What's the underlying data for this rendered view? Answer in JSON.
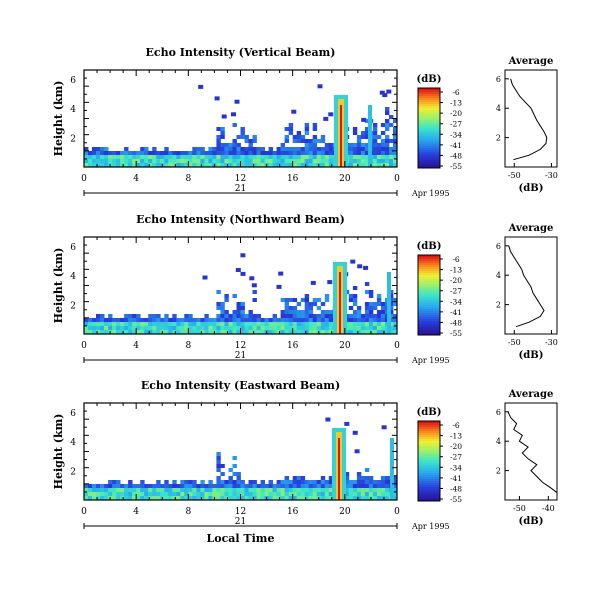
{
  "chart_data": [
    {
      "type": "heatmap",
      "title": "Echo Intensity (Vertical Beam)",
      "ylabel": "Height (km)",
      "y_ticks": [
        "6",
        "4",
        "2"
      ],
      "x_ticks": [
        "0",
        "4",
        "8",
        "12",
        "16",
        "20",
        "0"
      ],
      "day_label": "21",
      "date_label": "Apr 1995",
      "colorbar": {
        "label": "(dB)",
        "ticks": [
          "-6",
          "-13",
          "-20",
          "-27",
          "-34",
          "-41",
          "-48",
          "-55"
        ]
      },
      "average": {
        "title": "Average",
        "xlabel": "(dB)",
        "x_ticks": [
          "-50",
          "-30"
        ],
        "y_ticks": [
          "6",
          "4",
          "2"
        ],
        "profile": [
          [
            -50.5,
            0.5
          ],
          [
            -42,
            0.8
          ],
          [
            -36,
            1.2
          ],
          [
            -33,
            1.6
          ],
          [
            -32.5,
            2.0
          ],
          [
            -34,
            2.4
          ],
          [
            -36,
            2.8
          ],
          [
            -38,
            3.2
          ],
          [
            -39.5,
            3.6
          ],
          [
            -41,
            4.0
          ],
          [
            -44,
            4.4
          ],
          [
            -47,
            4.8
          ],
          [
            -49,
            5.2
          ],
          [
            -51,
            5.6
          ],
          [
            -52,
            6.0
          ]
        ]
      }
    },
    {
      "type": "heatmap",
      "title": "Echo Intensity (Northward Beam)",
      "ylabel": "Height (km)",
      "y_ticks": [
        "6",
        "4",
        "2"
      ],
      "x_ticks": [
        "0",
        "4",
        "8",
        "12",
        "16",
        "20",
        "0"
      ],
      "day_label": "21",
      "date_label": "Apr 1995",
      "colorbar": {
        "label": "(dB)",
        "ticks": [
          "-6",
          "-13",
          "-20",
          "-27",
          "-34",
          "-41",
          "-48",
          "-55"
        ]
      },
      "average": {
        "title": "Average",
        "xlabel": "(dB)",
        "x_ticks": [
          "-50",
          "-30"
        ],
        "y_ticks": [
          "6",
          "4",
          "2"
        ],
        "profile": [
          [
            -49,
            0.5
          ],
          [
            -42,
            0.8
          ],
          [
            -36,
            1.2
          ],
          [
            -34,
            1.6
          ],
          [
            -36,
            2.0
          ],
          [
            -38,
            2.4
          ],
          [
            -40,
            2.8
          ],
          [
            -41,
            3.2
          ],
          [
            -43,
            3.6
          ],
          [
            -45,
            4.0
          ],
          [
            -46,
            4.4
          ],
          [
            -48,
            4.8
          ],
          [
            -50,
            5.2
          ],
          [
            -52,
            5.6
          ],
          [
            -53,
            6.0
          ]
        ]
      }
    },
    {
      "type": "heatmap",
      "title": "Echo Intensity (Eastward Beam)",
      "ylabel": "Height (km)",
      "y_ticks": [
        "6",
        "4",
        "2"
      ],
      "x_ticks": [
        "0",
        "4",
        "8",
        "12",
        "16",
        "20",
        "0"
      ],
      "day_label": "21",
      "date_label": "Apr 1995",
      "xlabel": "Local Time",
      "colorbar": {
        "label": "(dB)",
        "ticks": [
          "-6",
          "-13",
          "-20",
          "-27",
          "-34",
          "-41",
          "-48",
          "-55"
        ]
      },
      "average": {
        "title": "Average",
        "xlabel": "(dB)",
        "x_ticks": [
          "-50",
          "-40"
        ],
        "y_ticks": [
          "6",
          "4",
          "2"
        ],
        "profile": [
          [
            -37,
            0.5
          ],
          [
            -39,
            0.8
          ],
          [
            -42,
            1.2
          ],
          [
            -44,
            1.6
          ],
          [
            -46,
            2.0
          ],
          [
            -44,
            2.4
          ],
          [
            -47,
            2.8
          ],
          [
            -49,
            3.2
          ],
          [
            -47,
            3.6
          ],
          [
            -50,
            4.0
          ],
          [
            -49,
            4.4
          ],
          [
            -52,
            4.8
          ],
          [
            -51,
            5.2
          ],
          [
            -53,
            5.6
          ],
          [
            -54,
            6.0
          ]
        ]
      }
    }
  ]
}
